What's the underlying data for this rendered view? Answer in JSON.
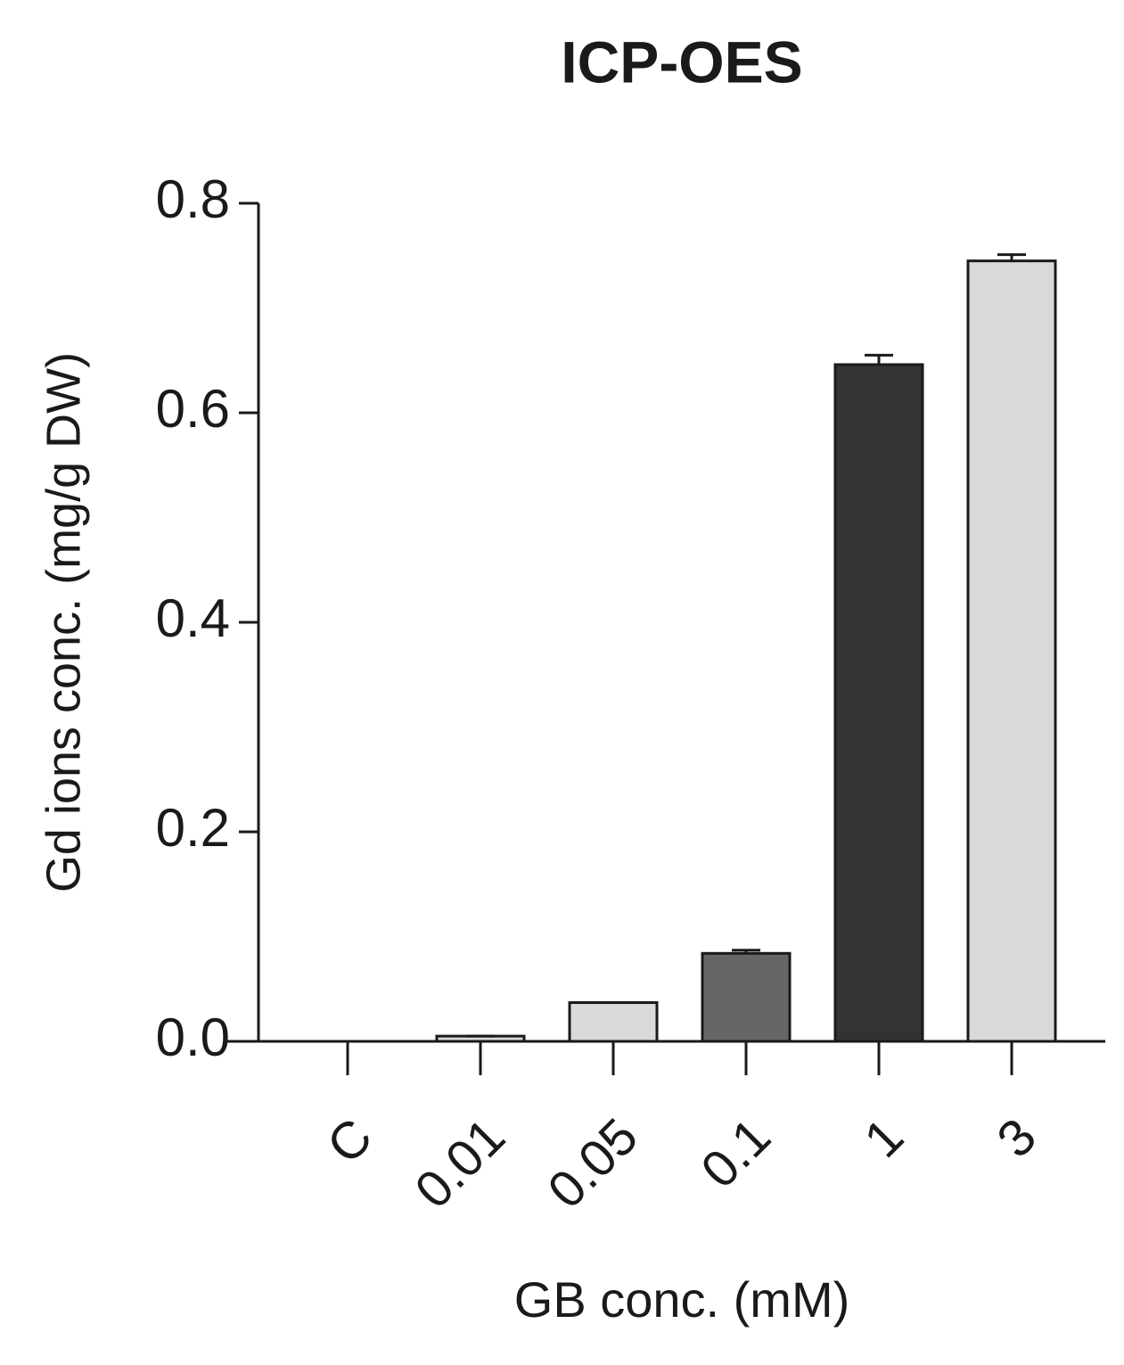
{
  "chart_data": {
    "type": "bar",
    "title": "ICP-OES",
    "x_label": "GB conc. (mM)",
    "y_label": "Gd ions conc. (mg/g DW)",
    "categories": [
      "C",
      "0.01",
      "0.05",
      "0.1",
      "1",
      "3"
    ],
    "values": [
      0,
      0.005,
      0.037,
      0.084,
      0.646,
      0.745
    ],
    "errors": [
      0,
      0,
      0,
      0.003,
      0.009,
      0.006
    ],
    "colors": [
      "#ffffff",
      "#d9d9d9",
      "#d9d9d9",
      "#666666",
      "#333333",
      "#d9d9d9"
    ],
    "ylim": [
      0,
      0.8
    ],
    "yticks": [
      {
        "value": 0,
        "label": "0.0"
      },
      0.2,
      0.4,
      0.6,
      0.8
    ]
  }
}
